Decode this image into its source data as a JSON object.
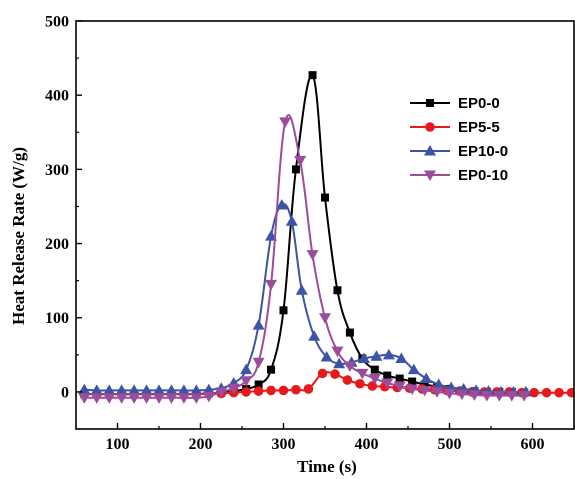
{
  "chart_data": {
    "type": "line",
    "xlabel": "Time (s)",
    "ylabel": "Heat Release Rate (W/g)",
    "xlim": [
      50,
      650
    ],
    "ylim": [
      -50,
      500
    ],
    "xticks": [
      100,
      200,
      300,
      400,
      500,
      600
    ],
    "yticks": [
      0,
      100,
      200,
      300,
      400,
      500
    ],
    "grid": false,
    "legend_position": "top-right",
    "series": [
      {
        "name": "EP0-0",
        "color": "#000000",
        "marker": "square",
        "points": [
          [
            60,
            -3
          ],
          [
            75,
            -3
          ],
          [
            90,
            -3
          ],
          [
            105,
            -3
          ],
          [
            120,
            -3
          ],
          [
            135,
            -3
          ],
          [
            150,
            -3
          ],
          [
            165,
            -3
          ],
          [
            180,
            -3
          ],
          [
            195,
            -3
          ],
          [
            210,
            -2
          ],
          [
            225,
            -1
          ],
          [
            240,
            1
          ],
          [
            255,
            4
          ],
          [
            270,
            10
          ],
          [
            285,
            30
          ],
          [
            300,
            110
          ],
          [
            315,
            300
          ],
          [
            335,
            427
          ],
          [
            350,
            262
          ],
          [
            365,
            137
          ],
          [
            380,
            80
          ],
          [
            395,
            45
          ],
          [
            410,
            30
          ],
          [
            425,
            22
          ],
          [
            440,
            18
          ],
          [
            455,
            14
          ],
          [
            470,
            10
          ],
          [
            485,
            7
          ],
          [
            500,
            4
          ],
          [
            515,
            2
          ],
          [
            530,
            1
          ],
          [
            545,
            0
          ],
          [
            560,
            0
          ],
          [
            575,
            0
          ],
          [
            590,
            -1
          ]
        ]
      },
      {
        "name": "EP5-5",
        "color": "#e8191c",
        "marker": "circle",
        "points": [
          [
            60,
            -3
          ],
          [
            75,
            -3
          ],
          [
            90,
            -3
          ],
          [
            105,
            -3
          ],
          [
            120,
            -3
          ],
          [
            135,
            -3
          ],
          [
            150,
            -3
          ],
          [
            165,
            -3
          ],
          [
            180,
            -3
          ],
          [
            195,
            -3
          ],
          [
            210,
            -2
          ],
          [
            225,
            -2
          ],
          [
            240,
            -1
          ],
          [
            255,
            0
          ],
          [
            270,
            1
          ],
          [
            285,
            2
          ],
          [
            300,
            2
          ],
          [
            315,
            3
          ],
          [
            330,
            4
          ],
          [
            347,
            25
          ],
          [
            362,
            24
          ],
          [
            377,
            16
          ],
          [
            392,
            11
          ],
          [
            407,
            8
          ],
          [
            422,
            7
          ],
          [
            437,
            6
          ],
          [
            452,
            5
          ],
          [
            467,
            4
          ],
          [
            482,
            3
          ],
          [
            497,
            2
          ],
          [
            512,
            1
          ],
          [
            527,
            0
          ],
          [
            542,
            0
          ],
          [
            557,
            0
          ],
          [
            572,
            0
          ],
          [
            587,
            -1
          ],
          [
            602,
            -1
          ],
          [
            617,
            -1
          ],
          [
            632,
            -1
          ],
          [
            647,
            -1
          ]
        ]
      },
      {
        "name": "EP10-0",
        "color": "#3b54a5",
        "marker": "triangle-up",
        "points": [
          [
            60,
            3
          ],
          [
            75,
            2
          ],
          [
            90,
            2
          ],
          [
            105,
            2
          ],
          [
            120,
            2
          ],
          [
            135,
            2
          ],
          [
            150,
            2
          ],
          [
            165,
            2
          ],
          [
            180,
            2
          ],
          [
            195,
            2
          ],
          [
            210,
            3
          ],
          [
            225,
            5
          ],
          [
            240,
            12
          ],
          [
            255,
            30
          ],
          [
            270,
            90
          ],
          [
            285,
            210
          ],
          [
            298,
            252
          ],
          [
            310,
            230
          ],
          [
            322,
            137
          ],
          [
            337,
            75
          ],
          [
            352,
            47
          ],
          [
            367,
            38
          ],
          [
            382,
            40
          ],
          [
            397,
            45
          ],
          [
            412,
            48
          ],
          [
            427,
            50
          ],
          [
            442,
            45
          ],
          [
            457,
            30
          ],
          [
            472,
            18
          ],
          [
            487,
            10
          ],
          [
            502,
            6
          ],
          [
            517,
            4
          ],
          [
            532,
            2
          ],
          [
            547,
            1
          ],
          [
            562,
            0
          ],
          [
            577,
            0
          ],
          [
            592,
            0
          ]
        ]
      },
      {
        "name": "EP0-10",
        "color": "#9b4c9b",
        "marker": "triangle-down",
        "points": [
          [
            60,
            -8
          ],
          [
            75,
            -8
          ],
          [
            90,
            -8
          ],
          [
            105,
            -8
          ],
          [
            120,
            -8
          ],
          [
            135,
            -8
          ],
          [
            150,
            -8
          ],
          [
            165,
            -8
          ],
          [
            180,
            -8
          ],
          [
            195,
            -8
          ],
          [
            210,
            -6
          ],
          [
            225,
            0
          ],
          [
            240,
            5
          ],
          [
            255,
            15
          ],
          [
            270,
            40
          ],
          [
            285,
            145
          ],
          [
            302,
            364
          ],
          [
            320,
            312
          ],
          [
            335,
            185
          ],
          [
            350,
            100
          ],
          [
            365,
            55
          ],
          [
            380,
            35
          ],
          [
            395,
            25
          ],
          [
            410,
            18
          ],
          [
            425,
            12
          ],
          [
            440,
            8
          ],
          [
            455,
            4
          ],
          [
            470,
            2
          ],
          [
            485,
            0
          ],
          [
            500,
            -2
          ],
          [
            515,
            -3
          ],
          [
            530,
            -4
          ],
          [
            545,
            -5
          ],
          [
            560,
            -5
          ],
          [
            575,
            -5
          ],
          [
            590,
            -5
          ]
        ]
      }
    ]
  }
}
